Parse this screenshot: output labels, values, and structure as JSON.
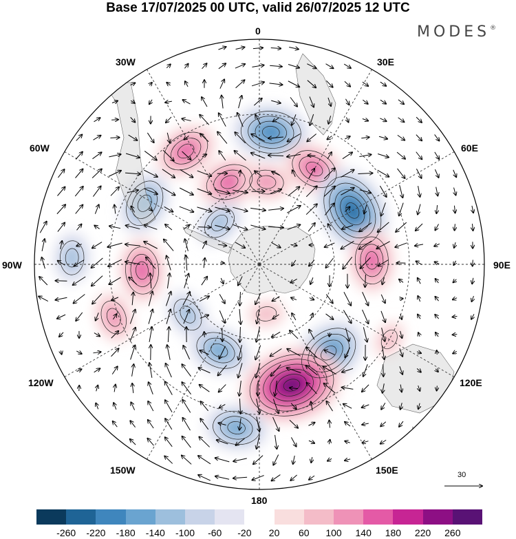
{
  "title": "Base 17/07/2025 00 UTC, valid 26/07/2025 12 UTC",
  "brand": "MODES",
  "brand_mark": "®",
  "longitude_labels": {
    "n0": "0",
    "n30e": "30E",
    "n60e": "60E",
    "n90e": "90E",
    "n120e": "120E",
    "n150e": "150E",
    "n180": "180",
    "n150w": "150W",
    "n120w": "120W",
    "n90w": "90W",
    "n60w": "60W",
    "n30w": "30W"
  },
  "vector_reference": "30",
  "colorbar": {
    "colors": [
      "#0b3a5c",
      "#1f6496",
      "#3f86bd",
      "#6aa4d0",
      "#9dbfdd",
      "#c8d3e8",
      "#e4e4f1",
      "#ffffff",
      "#f9dede",
      "#f4bcc8",
      "#ef92b7",
      "#e45aa6",
      "#c72594",
      "#8d0f84",
      "#591275"
    ],
    "ticks": [
      "-260",
      "-220",
      "-180",
      "-140",
      "-100",
      "-60",
      "-20",
      "20",
      "60",
      "100",
      "140",
      "180",
      "220",
      "260"
    ]
  },
  "anomaly_centers": [
    {
      "lon": 5,
      "colat": 53,
      "sign": "neg",
      "level": 4
    },
    {
      "lon": -33,
      "colat": 54,
      "sign": "pos",
      "level": 3
    },
    {
      "lon": 30,
      "colat": 44,
      "sign": "pos",
      "level": 3
    },
    {
      "lon": 60,
      "colat": 43,
      "sign": "neg",
      "level": 5
    },
    {
      "lon": 88,
      "colat": 45,
      "sign": "pos",
      "level": 3
    },
    {
      "lon": -62,
      "colat": 52,
      "sign": "neg",
      "level": 3
    },
    {
      "lon": -20,
      "colat": 35,
      "sign": "pos",
      "level": 3
    },
    {
      "lon": -44,
      "colat": 23,
      "sign": "neg",
      "level": 2
    },
    {
      "lon": 142,
      "colat": 45,
      "sign": "neg",
      "level": 4
    },
    {
      "lon": 165,
      "colat": 50,
      "sign": "pos",
      "level": 6
    },
    {
      "lon": -155,
      "colat": 38,
      "sign": "neg",
      "level": 3
    },
    {
      "lon": -110,
      "colat": 62,
      "sign": "pos",
      "level": 2
    },
    {
      "lon": -93,
      "colat": 47,
      "sign": "pos",
      "level": 3
    },
    {
      "lon": -88,
      "colat": 75,
      "sign": "neg",
      "level": 2
    },
    {
      "lon": -172,
      "colat": 66,
      "sign": "neg",
      "level": 3
    },
    {
      "lon": 172,
      "colat": 20,
      "sign": "pos",
      "level": 1
    },
    {
      "lon": 120,
      "colat": 60,
      "sign": "pos",
      "level": 1
    },
    {
      "lon": -125,
      "colat": 35,
      "sign": "neg",
      "level": 2
    },
    {
      "lon": 5,
      "colat": 33,
      "sign": "pos",
      "level": 2
    }
  ]
}
